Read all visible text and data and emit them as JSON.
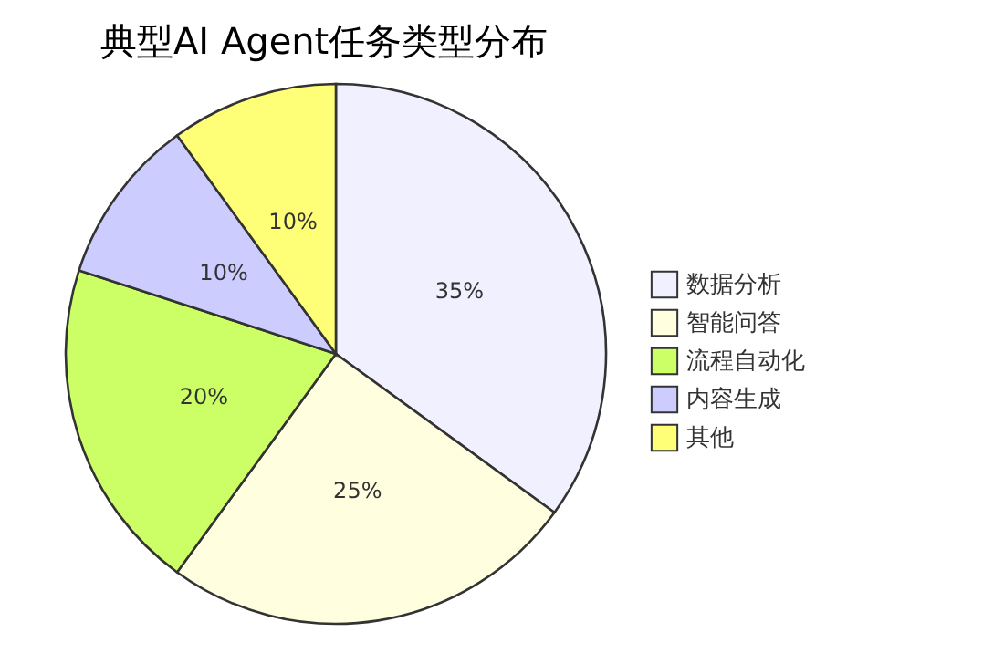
{
  "chart_data": {
    "type": "pie",
    "title": "典型AI Agent任务类型分布",
    "categories": [
      "数据分析",
      "智能问答",
      "流程自动化",
      "内容生成",
      "其他"
    ],
    "values": [
      35,
      25,
      20,
      10,
      10
    ],
    "colors": [
      "#f0f0ff",
      "#ffffe0",
      "#ccff66",
      "#ccccff",
      "#ffff77"
    ],
    "value_labels": [
      "35%",
      "25%",
      "20%",
      "10%",
      "10%"
    ],
    "legend": "right"
  }
}
